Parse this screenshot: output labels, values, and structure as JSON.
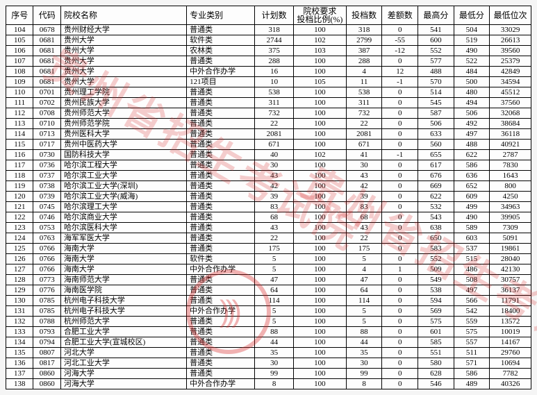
{
  "watermark_text": "贵州省招生考试院",
  "stamp_text": ")))",
  "columns": [
    {
      "key": "seq",
      "label": "序号",
      "cls": "col-code"
    },
    {
      "key": "code",
      "label": "代码",
      "cls": "col-id"
    },
    {
      "key": "name",
      "label": "院校名称",
      "cls": "col-name"
    },
    {
      "key": "type",
      "label": "专业类别",
      "cls": "col-type"
    },
    {
      "key": "plan",
      "label": "计划数",
      "cls": "col-plan"
    },
    {
      "key": "ratio",
      "label": "院校要求\n投档比例(%)",
      "cls": "col-ratio"
    },
    {
      "key": "cast",
      "label": "投档数",
      "cls": "col-cast"
    },
    {
      "key": "diff",
      "label": "差额数",
      "cls": "col-diff"
    },
    {
      "key": "max",
      "label": "最高分",
      "cls": "col-max"
    },
    {
      "key": "min",
      "label": "最低分",
      "cls": "col-min"
    },
    {
      "key": "rank",
      "label": "最低位次",
      "cls": "col-rank"
    }
  ],
  "rows": [
    {
      "seq": "104",
      "code": "0678",
      "name": "贵州财经大学",
      "type": "普通类",
      "plan": "318",
      "ratio": "100",
      "cast": "318",
      "diff": "0",
      "max": "541",
      "min": "504",
      "rank": "33029"
    },
    {
      "seq": "105",
      "code": "0681",
      "name": "贵州大学",
      "type": "软件类",
      "plan": "2744",
      "ratio": "102",
      "cast": "2799",
      "diff": "-55",
      "max": "600",
      "min": "519",
      "rank": "26613"
    },
    {
      "seq": "106",
      "code": "0681",
      "name": "贵州大学",
      "type": "农林类",
      "plan": "375",
      "ratio": "103",
      "cast": "387",
      "diff": "-12",
      "max": "552",
      "min": "490",
      "rank": "39560"
    },
    {
      "seq": "107",
      "code": "0681",
      "name": "贵州大学",
      "type": "普通类",
      "plan": "288",
      "ratio": "100",
      "cast": "288",
      "diff": "0",
      "max": "577",
      "min": "522",
      "rank": "25379"
    },
    {
      "seq": "108",
      "code": "0681",
      "name": "贵州大学",
      "type": "中外合作办学",
      "plan": "16",
      "ratio": "100",
      "cast": "4",
      "diff": "12",
      "max": "488",
      "min": "484",
      "rank": "42849"
    },
    {
      "seq": "109",
      "code": "0681",
      "name": "贵州大学",
      "type": "121项目",
      "plan": "10",
      "ratio": "105",
      "cast": "11",
      "diff": "-1",
      "max": "570",
      "min": "500",
      "rank": "34594"
    },
    {
      "seq": "110",
      "code": "0701",
      "name": "贵州理工学院",
      "type": "普通类",
      "plan": "538",
      "ratio": "100",
      "cast": "538",
      "diff": "0",
      "max": "514",
      "min": "480",
      "rank": "45512"
    },
    {
      "seq": "111",
      "code": "0702",
      "name": "贵州民族大学",
      "type": "普通类",
      "plan": "311",
      "ratio": "100",
      "cast": "311",
      "diff": "0",
      "max": "545",
      "min": "494",
      "rank": "37560"
    },
    {
      "seq": "112",
      "code": "0708",
      "name": "贵州师范大学",
      "type": "普通类",
      "plan": "732",
      "ratio": "100",
      "cast": "732",
      "diff": "0",
      "max": "587",
      "min": "506",
      "rank": "32068"
    },
    {
      "seq": "113",
      "code": "0710",
      "name": "贵州师范学院",
      "type": "普通类",
      "plan": "22",
      "ratio": "100",
      "cast": "22",
      "diff": "0",
      "max": "506",
      "min": "492",
      "rank": "38684"
    },
    {
      "seq": "114",
      "code": "0713",
      "name": "贵州医科大学",
      "type": "普通类",
      "plan": "2081",
      "ratio": "100",
      "cast": "2081",
      "diff": "0",
      "max": "633",
      "min": "497",
      "rank": "36118"
    },
    {
      "seq": "115",
      "code": "0717",
      "name": "贵州中医药大学",
      "type": "普通类",
      "plan": "671",
      "ratio": "100",
      "cast": "671",
      "diff": "0",
      "max": "560",
      "min": "488",
      "rank": "40921"
    },
    {
      "seq": "116",
      "code": "0730",
      "name": "国防科技大学",
      "type": "普通类",
      "plan": "40",
      "ratio": "102",
      "cast": "41",
      "diff": "-1",
      "max": "655",
      "min": "622",
      "rank": "2787"
    },
    {
      "seq": "117",
      "code": "0736",
      "name": "哈尔滨工程大学",
      "type": "普通类",
      "plan": "30",
      "ratio": "100",
      "cast": "30",
      "diff": "0",
      "max": "617",
      "min": "586",
      "rank": "7830"
    },
    {
      "seq": "118",
      "code": "0737",
      "name": "哈尔滨工业大学",
      "type": "普通类",
      "plan": "43",
      "ratio": "100",
      "cast": "43",
      "diff": "0",
      "max": "676",
      "min": "636",
      "rank": "1643"
    },
    {
      "seq": "119",
      "code": "0738",
      "name": "哈尔滨工业大学(深圳)",
      "type": "普通类",
      "plan": "42",
      "ratio": "100",
      "cast": "42",
      "diff": "0",
      "max": "669",
      "min": "652",
      "rank": "800"
    },
    {
      "seq": "120",
      "code": "0739",
      "name": "哈尔滨工业大学(威海)",
      "type": "普通类",
      "plan": "39",
      "ratio": "100",
      "cast": "39",
      "diff": "0",
      "max": "622",
      "min": "609",
      "rank": "4250"
    },
    {
      "seq": "121",
      "code": "0745",
      "name": "哈尔滨理工大学",
      "type": "普通类",
      "plan": "83",
      "ratio": "100",
      "cast": "83",
      "diff": "0",
      "max": "532",
      "min": "499",
      "rank": "34963"
    },
    {
      "seq": "122",
      "code": "0746",
      "name": "哈尔滨商业大学",
      "type": "普通类",
      "plan": "68",
      "ratio": "100",
      "cast": "68",
      "diff": "0",
      "max": "543",
      "min": "490",
      "rank": "39905"
    },
    {
      "seq": "123",
      "code": "0753",
      "name": "哈尔滨医科大学",
      "type": "普通类",
      "plan": "43",
      "ratio": "100",
      "cast": "43",
      "diff": "0",
      "max": "638",
      "min": "589",
      "rank": "7309"
    },
    {
      "seq": "124",
      "code": "0763",
      "name": "海军军医大学",
      "type": "普通类",
      "plan": "22",
      "ratio": "100",
      "cast": "22",
      "diff": "0",
      "max": "650",
      "min": "603",
      "rank": "5091"
    },
    {
      "seq": "125",
      "code": "0766",
      "name": "海南大学",
      "type": "普通类",
      "plan": "175",
      "ratio": "100",
      "cast": "175",
      "diff": "0",
      "max": "583",
      "min": "537",
      "rank": "19861"
    },
    {
      "seq": "126",
      "code": "0766",
      "name": "海南大学",
      "type": "软件类",
      "plan": "5",
      "ratio": "100",
      "cast": "5",
      "diff": "0",
      "max": "552",
      "min": "515",
      "rank": "28040"
    },
    {
      "seq": "127",
      "code": "0766",
      "name": "海南大学",
      "type": "中外合作办学",
      "plan": "5",
      "ratio": "100",
      "cast": "4",
      "diff": "1",
      "max": "509",
      "min": "486",
      "rank": "42130"
    },
    {
      "seq": "128",
      "code": "0773",
      "name": "海南师范大学",
      "type": "普通类",
      "plan": "47",
      "ratio": "100",
      "cast": "47",
      "diff": "0",
      "max": "549",
      "min": "508",
      "rank": "30757"
    },
    {
      "seq": "129",
      "code": "0776",
      "name": "海南医学院",
      "type": "普通类",
      "plan": "64",
      "ratio": "100",
      "cast": "64",
      "diff": "0",
      "max": "538",
      "min": "497",
      "rank": "36137"
    },
    {
      "seq": "130",
      "code": "0785",
      "name": "杭州电子科技大学",
      "type": "普通类",
      "plan": "114",
      "ratio": "100",
      "cast": "114",
      "diff": "0",
      "max": "594",
      "min": "566",
      "rank": "11791"
    },
    {
      "seq": "131",
      "code": "0785",
      "name": "杭州电子科技大学",
      "type": "中外合作办学",
      "plan": "5",
      "ratio": "100",
      "cast": "5",
      "diff": "0",
      "max": "569",
      "min": "542",
      "rank": "18400"
    },
    {
      "seq": "132",
      "code": "0788",
      "name": "杭州师范大学",
      "type": "普通类",
      "plan": "5",
      "ratio": "100",
      "cast": "5",
      "diff": "0",
      "max": "575",
      "min": "559",
      "rank": "13572"
    },
    {
      "seq": "133",
      "code": "0793",
      "name": "合肥工业大学",
      "type": "普通类",
      "plan": "88",
      "ratio": "100",
      "cast": "88",
      "diff": "0",
      "max": "601",
      "min": "575",
      "rank": "10019"
    },
    {
      "seq": "134",
      "code": "0794",
      "name": "合肥工业大学(宣城校区)",
      "type": "普通类",
      "plan": "44",
      "ratio": "100",
      "cast": "44",
      "diff": "0",
      "max": "585",
      "min": "557",
      "rank": "14167"
    },
    {
      "seq": "135",
      "code": "0807",
      "name": "河北大学",
      "type": "普通类",
      "plan": "35",
      "ratio": "100",
      "cast": "35",
      "diff": "0",
      "max": "551",
      "min": "511",
      "rank": "29760"
    },
    {
      "seq": "136",
      "code": "0817",
      "name": "河北工业大学",
      "type": "普通类",
      "plan": "30",
      "ratio": "100",
      "cast": "30",
      "diff": "0",
      "max": "580",
      "min": "571",
      "rank": "10694"
    },
    {
      "seq": "137",
      "code": "0860",
      "name": "河海大学",
      "type": "普通类",
      "plan": "99",
      "ratio": "100",
      "cast": "99",
      "diff": "0",
      "max": "628",
      "min": "586",
      "rank": "7782"
    },
    {
      "seq": "138",
      "code": "0860",
      "name": "河海大学",
      "type": "中外合作办学",
      "plan": "8",
      "ratio": "100",
      "cast": "8",
      "diff": "0",
      "max": "546",
      "min": "489",
      "rank": "40326"
    }
  ]
}
